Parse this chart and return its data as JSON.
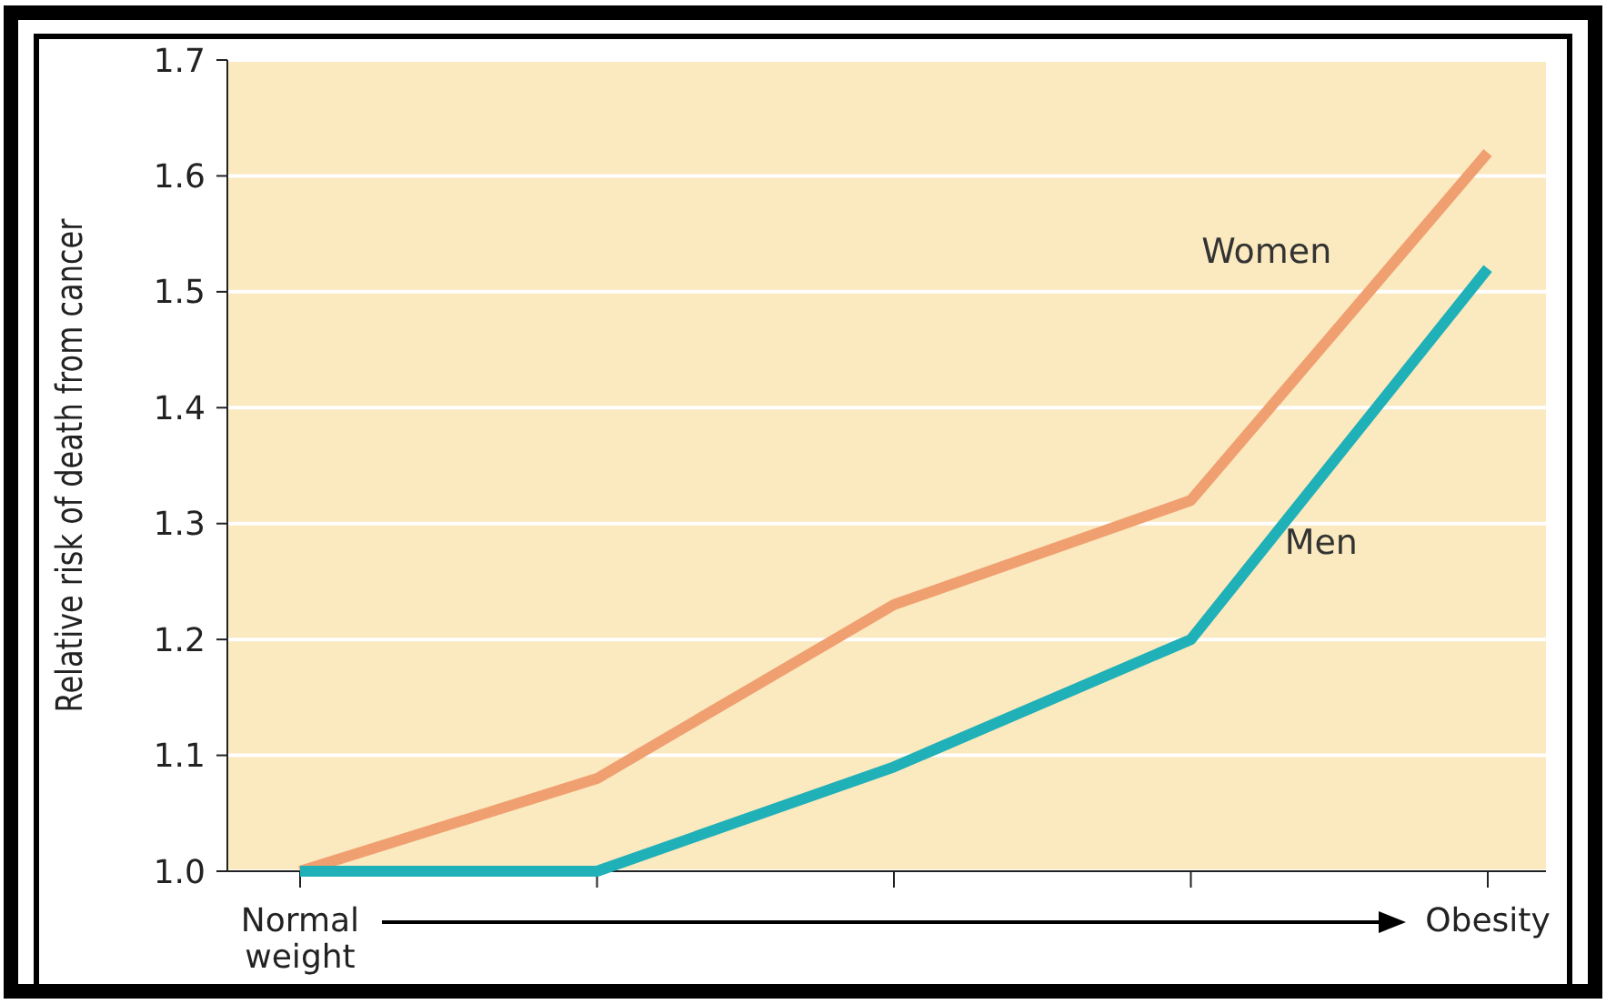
{
  "chart_data": {
    "type": "line",
    "ylabel": "Relative risk of death from cancer",
    "categories": [
      "Normal weight",
      null,
      null,
      null,
      "Obesity"
    ],
    "series": [
      {
        "name": "Women",
        "color": "#f0a070",
        "values": [
          1.0,
          1.08,
          1.23,
          1.32,
          1.62
        ]
      },
      {
        "name": "Men",
        "color": "#20b0b8",
        "values": [
          1.0,
          1.0,
          1.09,
          1.2,
          1.52
        ]
      }
    ],
    "ylim": [
      1.0,
      1.7
    ],
    "yticks": [
      {
        "value": 1.0,
        "label": "1.0"
      },
      1.1,
      1.2,
      1.3,
      1.4,
      1.5,
      1.6,
      1.7
    ],
    "grid": "y",
    "marker": "none",
    "line_style": "solid"
  }
}
